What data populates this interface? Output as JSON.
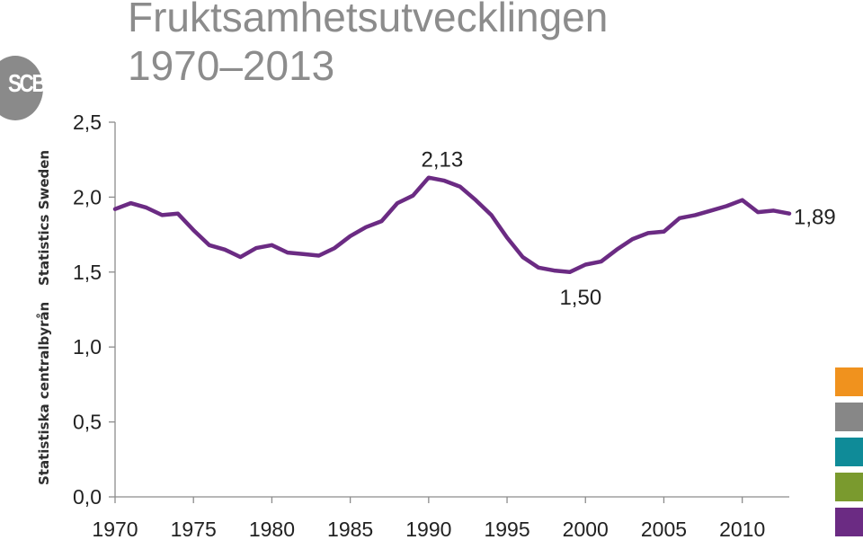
{
  "title": {
    "line1": "Fruktsamhetsutvecklingen",
    "line2": "1970–2013"
  },
  "logo": {
    "text": "SCB"
  },
  "side_labels": {
    "english": "Statistics Sweden",
    "swedish": "Statistiska centralbyrån"
  },
  "colors": {
    "line": "#6b2b83",
    "axis": "#8c8c8c",
    "title": "#8c8c8c",
    "swatches": [
      "#f0921e",
      "#878787",
      "#0f8b98",
      "#7a9a2e",
      "#6b2b83"
    ]
  },
  "chart_data": {
    "type": "line",
    "x": [
      1970,
      1971,
      1972,
      1973,
      1974,
      1975,
      1976,
      1977,
      1978,
      1979,
      1980,
      1981,
      1982,
      1983,
      1984,
      1985,
      1986,
      1987,
      1988,
      1989,
      1990,
      1991,
      1992,
      1993,
      1994,
      1995,
      1996,
      1997,
      1998,
      1999,
      2000,
      2001,
      2002,
      2003,
      2004,
      2005,
      2006,
      2007,
      2008,
      2009,
      2010,
      2011,
      2012,
      2013
    ],
    "series": [
      {
        "values": [
          1.92,
          1.96,
          1.93,
          1.88,
          1.89,
          1.78,
          1.68,
          1.65,
          1.6,
          1.66,
          1.68,
          1.63,
          1.62,
          1.61,
          1.66,
          1.74,
          1.8,
          1.84,
          1.96,
          2.01,
          2.13,
          2.11,
          2.07,
          1.98,
          1.88,
          1.73,
          1.6,
          1.53,
          1.51,
          1.5,
          1.55,
          1.57,
          1.65,
          1.72,
          1.76,
          1.77,
          1.86,
          1.88,
          1.91,
          1.94,
          1.98,
          1.9,
          1.91,
          1.89
        ]
      }
    ],
    "xticks": [
      1970,
      1975,
      1980,
      1985,
      1990,
      1995,
      2000,
      2005,
      2010
    ],
    "xtick_labels": [
      "1970",
      "1975",
      "1980",
      "1985",
      "1990",
      "1995",
      "2000",
      "2005",
      "2010"
    ],
    "yticks": [
      0,
      0.5,
      1.0,
      1.5,
      2.0,
      2.5
    ],
    "ytick_labels": [
      "0,0",
      "0,5",
      "1,0",
      "1,5",
      "2,0",
      "2,5"
    ],
    "ylim": [
      0,
      2.5
    ],
    "xlim": [
      1970,
      2013
    ],
    "grid": false,
    "annotations": [
      {
        "x": 1990,
        "y": 2.13,
        "text": "2,13",
        "position": "above"
      },
      {
        "x": 1999,
        "y": 1.5,
        "text": "1,50",
        "position": "below"
      },
      {
        "x": 2013,
        "y": 1.89,
        "text": "1,89",
        "position": "right"
      }
    ]
  }
}
